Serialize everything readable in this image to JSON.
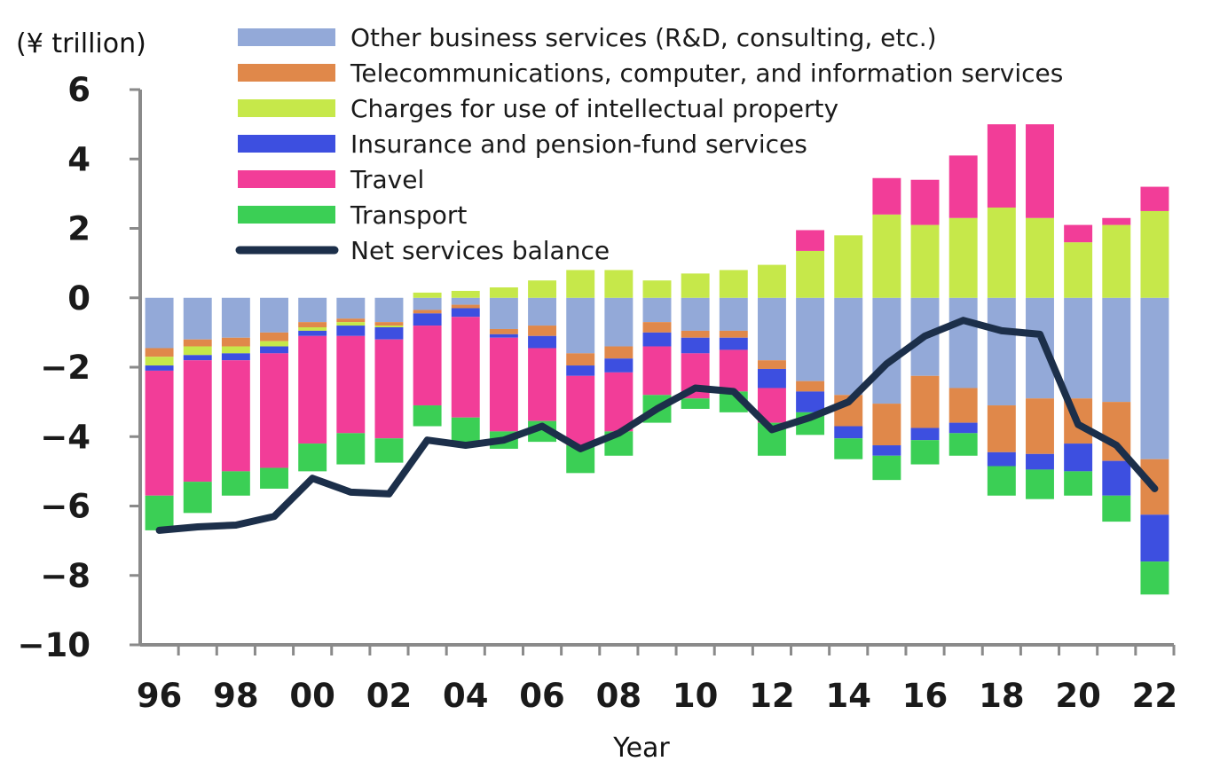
{
  "chart_data": {
    "type": "bar",
    "unit_label": "(¥ trillion)",
    "xlabel": "Year",
    "ylabel": "",
    "ylim": [
      -10,
      6
    ],
    "y_ticks": [
      6,
      4,
      2,
      0,
      -2,
      -4,
      -6,
      -8,
      -10
    ],
    "y_tick_labels": [
      "6",
      "4",
      "2",
      "0",
      "−2",
      "−4",
      "−6",
      "−8",
      "−10"
    ],
    "x_tick_labels": [
      "96",
      "98",
      "00",
      "02",
      "04",
      "06",
      "08",
      "10",
      "12",
      "14",
      "16",
      "18",
      "20",
      "22"
    ],
    "categories": [
      "1996",
      "1997",
      "1998",
      "1999",
      "2000",
      "2001",
      "2002",
      "2003",
      "2004",
      "2005",
      "2006",
      "2007",
      "2008",
      "2009",
      "2010",
      "2011",
      "2012",
      "2013",
      "2014",
      "2015",
      "2016",
      "2017",
      "2018",
      "2019",
      "2020",
      "2021",
      "2022"
    ],
    "stacked": true,
    "grid": false,
    "legend_position": "top",
    "series": [
      {
        "name": "Other business services (R&D, consulting, etc.)",
        "type": "bar",
        "color": "#93a9d8",
        "values": [
          -1.45,
          -1.2,
          -1.15,
          -1.0,
          -0.7,
          -0.6,
          -0.7,
          -0.35,
          -0.2,
          -0.9,
          -0.8,
          -1.6,
          -1.4,
          -0.7,
          -0.95,
          -0.95,
          -1.8,
          -2.4,
          -2.8,
          -3.05,
          -2.25,
          -2.6,
          -3.1,
          -2.9,
          -2.9,
          -3.0,
          -4.65
        ]
      },
      {
        "name": "Telecommunications, computer, and information services",
        "type": "bar",
        "color": "#e0884a",
        "values": [
          -0.25,
          -0.2,
          -0.25,
          -0.25,
          -0.15,
          -0.1,
          -0.1,
          -0.1,
          -0.1,
          -0.15,
          -0.3,
          -0.35,
          -0.35,
          -0.3,
          -0.2,
          -0.2,
          -0.25,
          -0.3,
          -0.9,
          -1.2,
          -1.5,
          -1.0,
          -1.35,
          -1.6,
          -1.3,
          -1.7,
          -1.6
        ]
      },
      {
        "name": "Charges for use of intellectual property",
        "type": "bar",
        "color": "#c6e84a",
        "values": [
          -0.25,
          -0.25,
          -0.2,
          -0.15,
          -0.1,
          -0.1,
          -0.05,
          0.15,
          0.2,
          0.3,
          0.5,
          0.8,
          0.8,
          0.5,
          0.7,
          0.8,
          0.95,
          1.35,
          1.8,
          2.4,
          2.1,
          2.3,
          2.6,
          2.3,
          1.6,
          2.1,
          2.5
        ]
      },
      {
        "name": "Insurance and pension-fund services",
        "type": "bar",
        "color": "#3d4fe0",
        "values": [
          -0.15,
          -0.15,
          -0.2,
          -0.2,
          -0.15,
          -0.3,
          -0.35,
          -0.35,
          -0.25,
          -0.1,
          -0.35,
          -0.3,
          -0.4,
          -0.4,
          -0.45,
          -0.35,
          -0.55,
          -0.6,
          -0.35,
          -0.3,
          -0.35,
          -0.3,
          -0.4,
          -0.45,
          -0.8,
          -1.0,
          -1.35
        ]
      },
      {
        "name": "Travel",
        "type": "bar",
        "color": "#f23d98",
        "values": [
          -3.6,
          -3.5,
          -3.2,
          -3.3,
          -3.1,
          -2.8,
          -2.85,
          -2.3,
          -2.9,
          -2.7,
          -2.1,
          -2.0,
          -1.7,
          -1.4,
          -1.3,
          -1.2,
          -1.0,
          0.6,
          0.0,
          1.05,
          1.3,
          1.8,
          2.4,
          2.7,
          0.5,
          0.2,
          0.7
        ]
      },
      {
        "name": "Transport",
        "type": "bar",
        "color": "#3bcf55",
        "values": [
          -1.0,
          -0.9,
          -0.7,
          -0.6,
          -0.8,
          -0.9,
          -0.7,
          -0.6,
          -0.7,
          -0.5,
          -0.6,
          -0.8,
          -0.7,
          -0.8,
          -0.3,
          -0.6,
          -0.95,
          -0.65,
          -0.6,
          -0.7,
          -0.7,
          -0.65,
          -0.85,
          -0.85,
          -0.7,
          -0.75,
          -0.95
        ]
      },
      {
        "name": "Net services balance",
        "type": "line",
        "color": "#1c2f4a",
        "values": [
          -6.7,
          -6.6,
          -6.55,
          -6.3,
          -5.2,
          -5.6,
          -5.65,
          -4.1,
          -4.25,
          -4.1,
          -3.7,
          -4.35,
          -3.9,
          -3.2,
          -2.6,
          -2.7,
          -3.8,
          -3.45,
          -3.0,
          -1.9,
          -1.1,
          -0.65,
          -0.95,
          -1.05,
          -3.65,
          -4.25,
          -5.5
        ]
      }
    ]
  }
}
